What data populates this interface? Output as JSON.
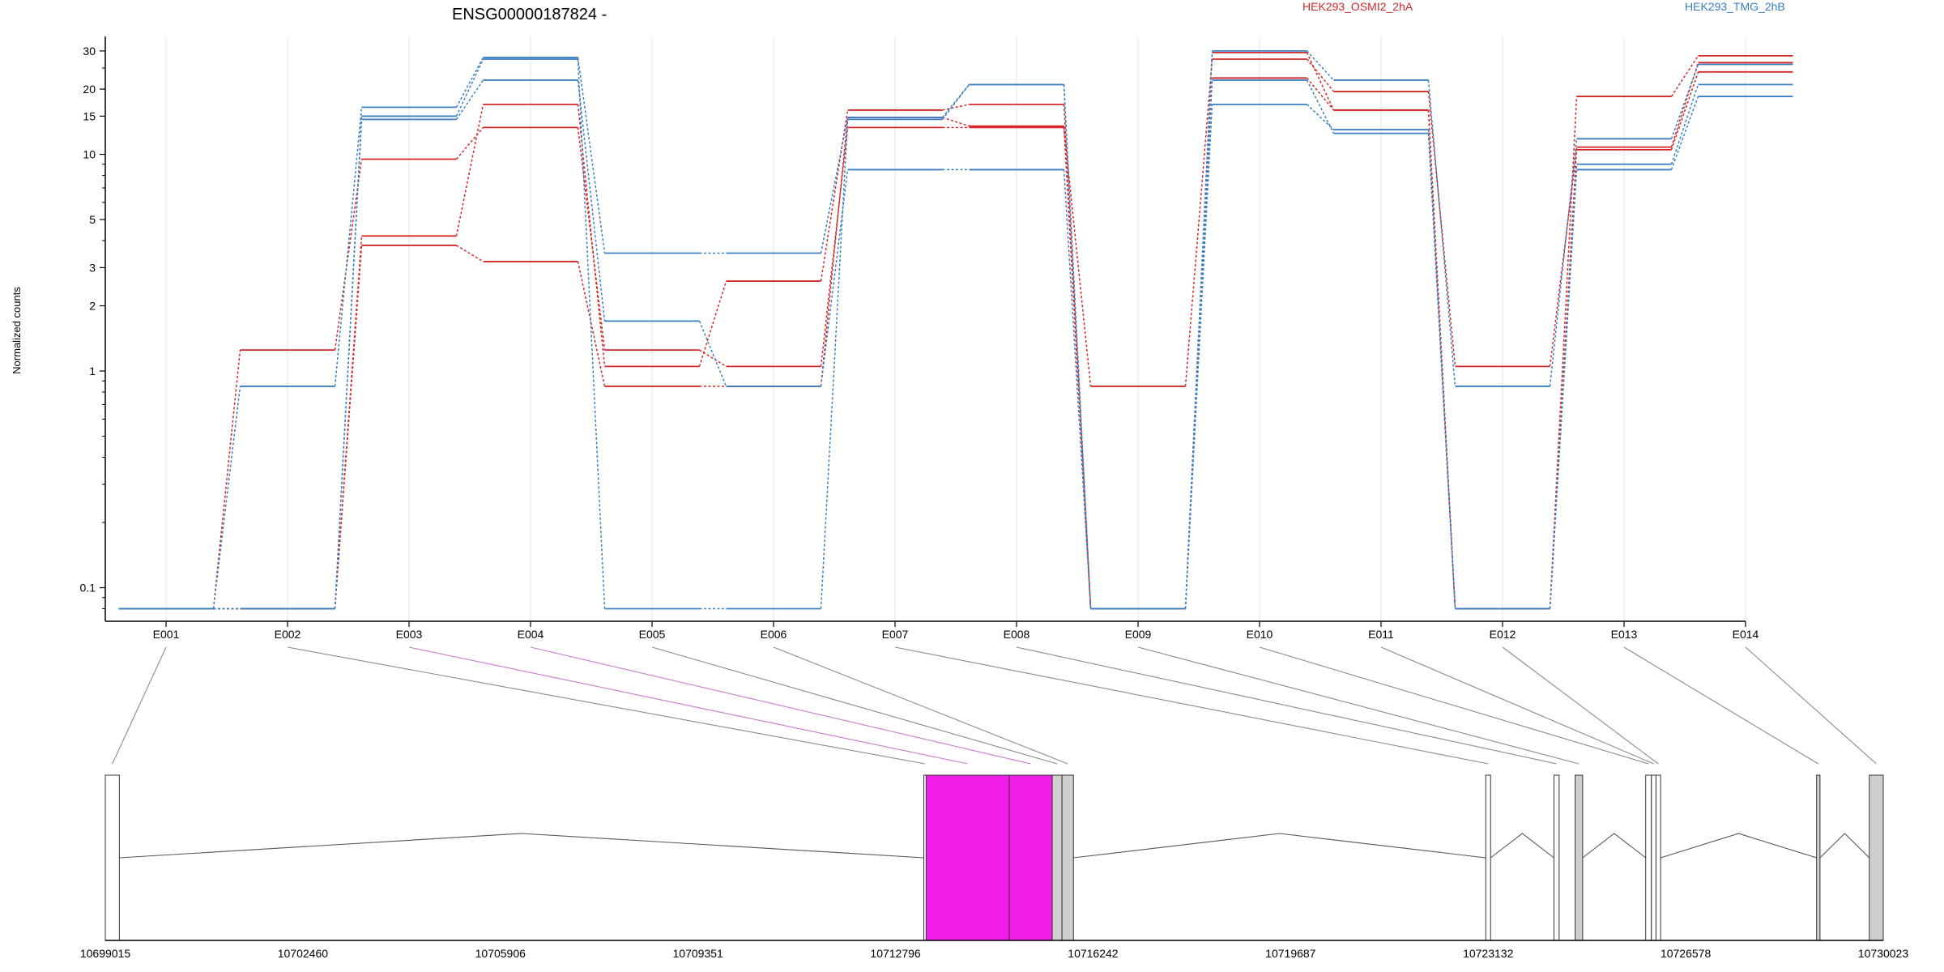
{
  "chart_data": {
    "type": "line",
    "title": "ENSG00000187824 -",
    "ylabel": "Normalized counts",
    "y_scale": "log",
    "ylim": [
      0.07,
      35
    ],
    "yticks": [
      {
        "value": 0.1,
        "label": "0.1"
      },
      {
        "value": 1,
        "label": "1"
      },
      {
        "value": 2,
        "label": "2"
      },
      {
        "value": 3,
        "label": "3"
      },
      {
        "value": 5,
        "label": "5"
      },
      {
        "value": 10,
        "label": "10"
      },
      {
        "value": 15,
        "label": "15"
      },
      {
        "value": 20,
        "label": "20"
      },
      {
        "value": 30,
        "label": "30"
      }
    ],
    "categories": [
      "E001",
      "E002",
      "E003",
      "E004",
      "E005",
      "E006",
      "E007",
      "E008",
      "E009",
      "E010",
      "E011",
      "E012",
      "E013",
      "E014"
    ],
    "legend": [
      {
        "label": "HEK293_OSMI2_2hA",
        "color": "#d62728"
      },
      {
        "label": "HEK293_TMG_2hB",
        "color": "#3a7fc1"
      }
    ],
    "series": [
      {
        "group": 0,
        "color": "#d62728",
        "values": [
          0.08,
          1.25,
          9.5,
          13.3,
          1.25,
          1.05,
          13.3,
          13.3,
          0.85,
          27.5,
          19.5,
          1.05,
          10.5,
          24.0
        ]
      },
      {
        "group": 0,
        "color": "#d62728",
        "values": [
          0.08,
          0.08,
          4.2,
          17.0,
          1.05,
          2.6,
          16.0,
          17.0,
          0.08,
          29.5,
          16.0,
          0.08,
          10.8,
          26.5
        ]
      },
      {
        "group": 0,
        "color": "#d62728",
        "values": [
          0.08,
          0.08,
          3.8,
          3.2,
          0.85,
          0.85,
          14.8,
          13.5,
          0.08,
          22.5,
          16.0,
          0.08,
          18.5,
          28.5
        ]
      },
      {
        "group": 1,
        "color": "#3a7fc1",
        "values": [
          0.08,
          0.85,
          16.5,
          28.0,
          3.5,
          3.5,
          14.8,
          21.0,
          0.08,
          30.0,
          22.0,
          0.85,
          11.8,
          26.0
        ]
      },
      {
        "group": 1,
        "color": "#3a7fc1",
        "values": [
          0.08,
          0.08,
          14.5,
          22.0,
          1.7,
          0.85,
          8.5,
          8.5,
          0.08,
          22.0,
          12.5,
          0.08,
          8.5,
          18.5
        ]
      },
      {
        "group": 1,
        "color": "#3a7fc1",
        "values": [
          0.08,
          0.08,
          15.0,
          27.5,
          0.08,
          0.08,
          14.5,
          21.0,
          0.08,
          17.0,
          13.0,
          0.08,
          9.0,
          21.0
        ]
      }
    ],
    "gene_model": {
      "coordinate_ticks": [
        "10699015",
        "10702460",
        "10705906",
        "10709351",
        "10712796",
        "10716242",
        "10719687",
        "10723132",
        "10726578",
        "10730023"
      ],
      "range": [
        10699015,
        10730023
      ],
      "highlight_color": "#f01ee6",
      "exons": [
        {
          "id": "E001",
          "start": 10699015,
          "end": 10699260,
          "fill": "#ffffff"
        },
        {
          "id": "E002",
          "start": 10713290,
          "end": 10713330,
          "fill": "#ffffff"
        },
        {
          "id": "E003",
          "start": 10713330,
          "end": 10714780,
          "fill": "#f01ee6"
        },
        {
          "id": "E004",
          "start": 10714780,
          "end": 10715530,
          "fill": "#f01ee6"
        },
        {
          "id": "E005",
          "start": 10715530,
          "end": 10715700,
          "fill": "#cfcfcf"
        },
        {
          "id": "E006",
          "start": 10715700,
          "end": 10715900,
          "fill": "#cfcfcf"
        },
        {
          "id": "E007",
          "start": 10723090,
          "end": 10723175,
          "fill": "#ffffff"
        },
        {
          "id": "E008",
          "start": 10724280,
          "end": 10724370,
          "fill": "#ffffff"
        },
        {
          "id": "E009",
          "start": 10724650,
          "end": 10724780,
          "fill": "#cfcfcf"
        },
        {
          "id": "E010",
          "start": 10725880,
          "end": 10725980,
          "fill": "#ffffff"
        },
        {
          "id": "E011",
          "start": 10725980,
          "end": 10726060,
          "fill": "#ffffff"
        },
        {
          "id": "E012",
          "start": 10726060,
          "end": 10726140,
          "fill": "#ffffff"
        },
        {
          "id": "E013",
          "start": 10728860,
          "end": 10728920,
          "fill": "#cfcfcf"
        },
        {
          "id": "E014",
          "start": 10729780,
          "end": 10730023,
          "fill": "#cfcfcf"
        }
      ],
      "introns": [
        {
          "from": 10699260,
          "to": 10713290
        },
        {
          "from": 10715900,
          "to": 10723090
        },
        {
          "from": 10723175,
          "to": 10724280
        },
        {
          "from": 10724780,
          "to": 10725880
        },
        {
          "from": 10726140,
          "to": 10728860
        },
        {
          "from": 10728920,
          "to": 10729780
        }
      ]
    }
  }
}
